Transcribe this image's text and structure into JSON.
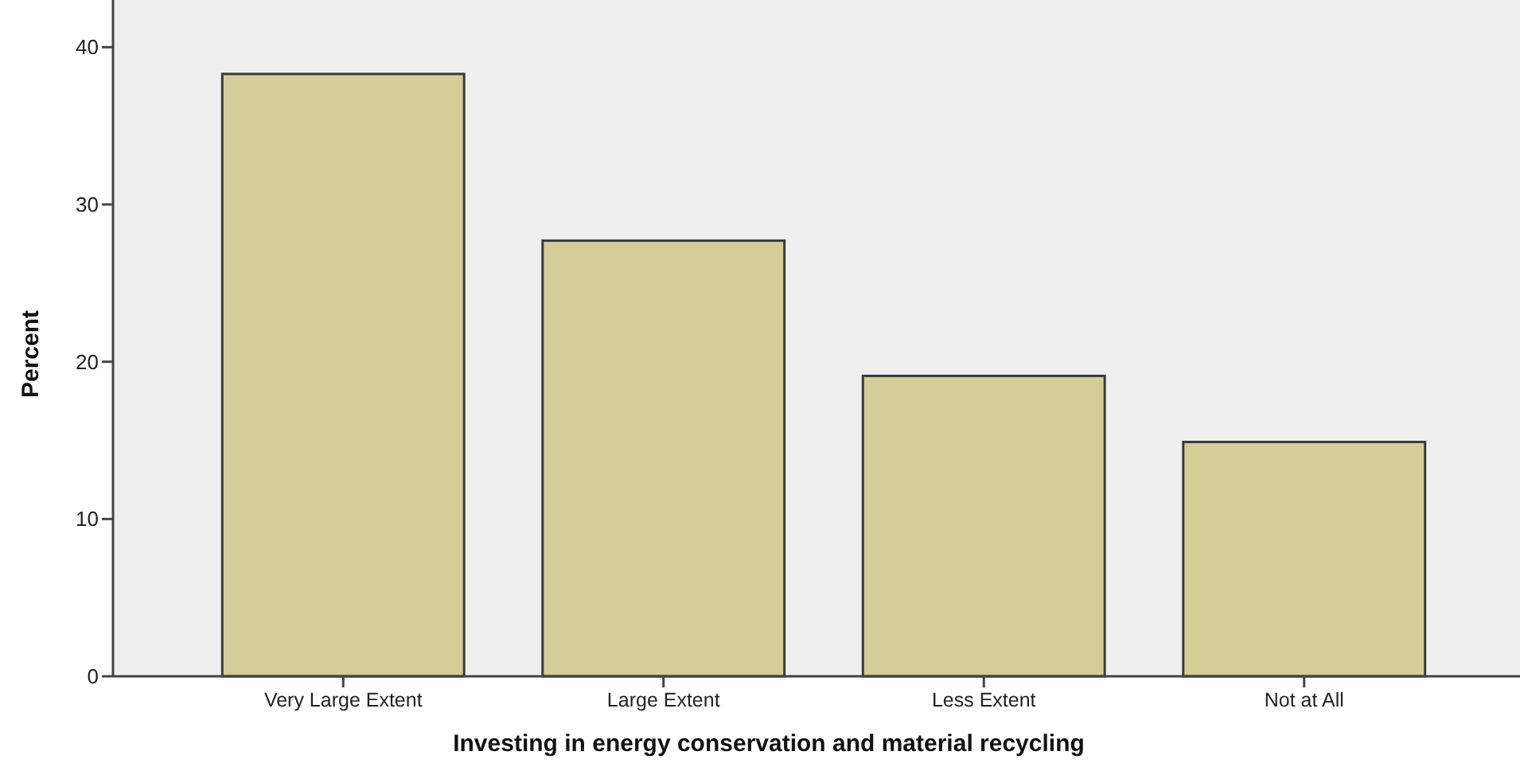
{
  "chart_data": {
    "type": "bar",
    "xlabel": "Investing in energy conservation and material recycling",
    "ylabel": "Percent",
    "categories": [
      "Very Large Extent",
      "Large Extent",
      "Less Extent",
      "Not at All"
    ],
    "values": [
      38.3,
      27.7,
      19.1,
      14.9
    ],
    "color": "#d3cd97",
    "ylim": [
      0,
      43
    ],
    "yticks": [
      0,
      10,
      20,
      30,
      40
    ],
    "grid": false
  }
}
